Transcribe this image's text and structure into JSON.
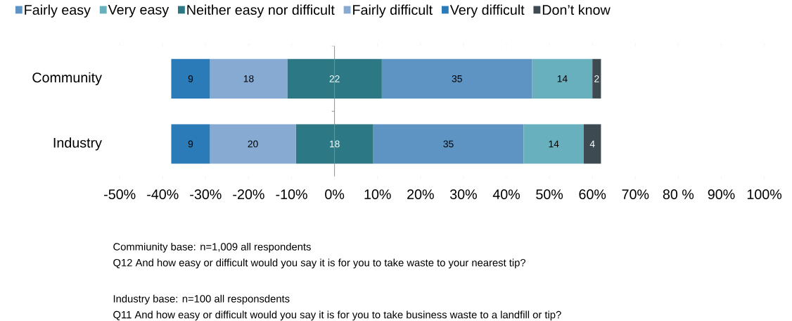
{
  "chart_data": {
    "type": "bar",
    "orientation": "horizontal",
    "categories": [
      "Community",
      "Industry"
    ],
    "series": [
      {
        "name": "Fairly easy",
        "color": "#5e94c4",
        "values": [
          35,
          35
        ],
        "base": [
          11,
          9
        ]
      },
      {
        "name": "Very easy",
        "color": "#68b0bd",
        "values": [
          14,
          14
        ],
        "base": [
          46,
          44
        ]
      },
      {
        "name": "Neither easy nor difficult",
        "color": "#2c7884",
        "values": [
          22,
          18
        ],
        "base": [
          -11,
          -9
        ]
      },
      {
        "name": "Fairly difficult",
        "color": "#86aad2",
        "values": [
          18,
          20
        ],
        "base": [
          -29,
          -29
        ]
      },
      {
        "name": "Very difficult",
        "color": "#2b7bb9",
        "values": [
          9,
          9
        ],
        "base": [
          -38,
          -38
        ]
      },
      {
        "name": "Don’t know",
        "color": "#3d4a52",
        "values": [
          2,
          4
        ],
        "base": [
          60,
          58
        ]
      }
    ],
    "xlim": [
      -50,
      100
    ],
    "xticks": [
      {
        "value": -50,
        "label": "-50%"
      },
      {
        "value": -40,
        "label": "-40%"
      },
      {
        "value": -30,
        "label": "-30%"
      },
      {
        "value": -20,
        "label": "-20%"
      },
      {
        "value": -10,
        "label": "-10%"
      },
      {
        "value": 0,
        "label": "0%"
      },
      {
        "value": 10,
        "label": "10%"
      },
      {
        "value": 20,
        "label": "20%"
      },
      {
        "value": 30,
        "label": "30%"
      },
      {
        "value": 40,
        "label": "40%"
      },
      {
        "value": 50,
        "label": "50%"
      },
      {
        "value": 60,
        "label": "60%"
      },
      {
        "value": 70,
        "label": "70%"
      },
      {
        "value": 80,
        "label": "80 %"
      },
      {
        "value": 90,
        "label": "90%"
      },
      {
        "value": 100,
        "label": "100%"
      }
    ],
    "data_labels": true,
    "legend": "top",
    "annotations": [
      "Commiunity base: n=1,009 all respondents",
      "Q12 And how easy or difficult would you say it is for you to take waste to your nearest tip?",
      "Industry base: n=100 all responsdents",
      "Q11 And how easy or difficult would you say it is for you to take business waste to a landfill or tip?"
    ]
  }
}
